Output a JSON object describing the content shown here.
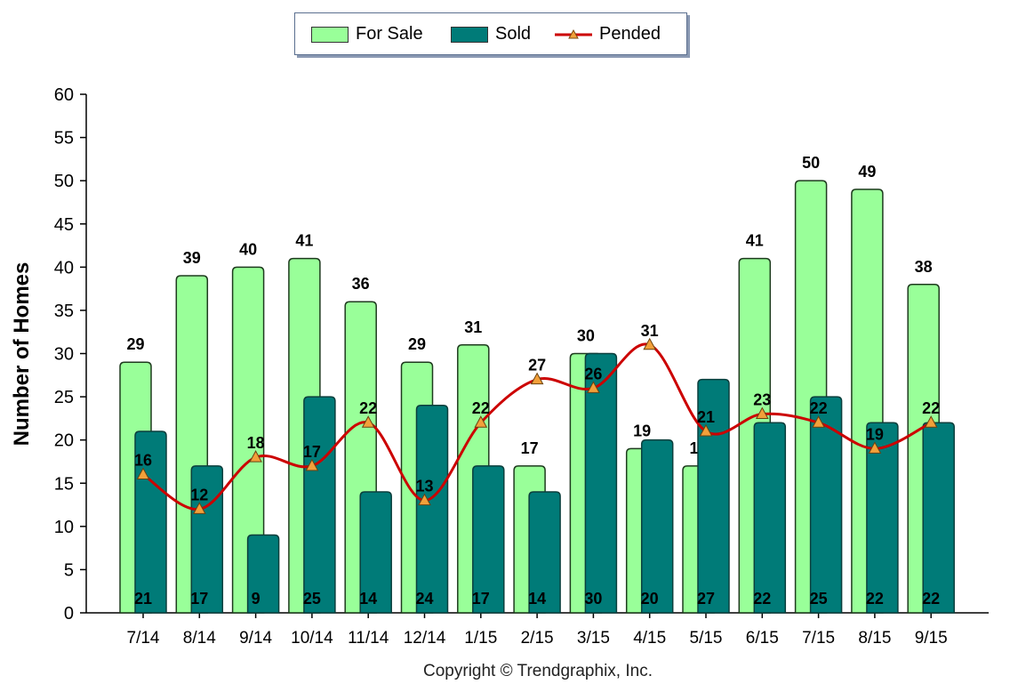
{
  "chart_data": {
    "type": "bar",
    "categories": [
      "7/14",
      "8/14",
      "9/14",
      "10/14",
      "11/14",
      "12/14",
      "1/15",
      "2/15",
      "3/15",
      "4/15",
      "5/15",
      "6/15",
      "7/15",
      "8/15",
      "9/15"
    ],
    "series": [
      {
        "name": "For Sale",
        "type": "bar",
        "color": "#99ff99",
        "values": [
          29,
          39,
          40,
          41,
          36,
          29,
          31,
          17,
          30,
          19,
          17,
          41,
          50,
          49,
          38
        ]
      },
      {
        "name": "Sold",
        "type": "bar",
        "color": "#007b78",
        "values": [
          21,
          17,
          9,
          25,
          14,
          24,
          17,
          14,
          30,
          20,
          27,
          22,
          25,
          22,
          22
        ]
      },
      {
        "name": "Pended",
        "type": "line",
        "color": "#cc0000",
        "marker_color": "#f2a03a",
        "values": [
          16,
          12,
          18,
          17,
          22,
          13,
          22,
          27,
          26,
          31,
          21,
          23,
          22,
          19,
          22
        ]
      }
    ],
    "ylabel": "Number of Homes",
    "ylim": [
      0,
      60
    ],
    "yticks": [
      0,
      5,
      10,
      15,
      20,
      25,
      30,
      35,
      40,
      45,
      50,
      55,
      60
    ],
    "legend": "top-center",
    "grid": false
  },
  "footer": {
    "copyright": "Copyright © Trendgraphix, Inc."
  }
}
